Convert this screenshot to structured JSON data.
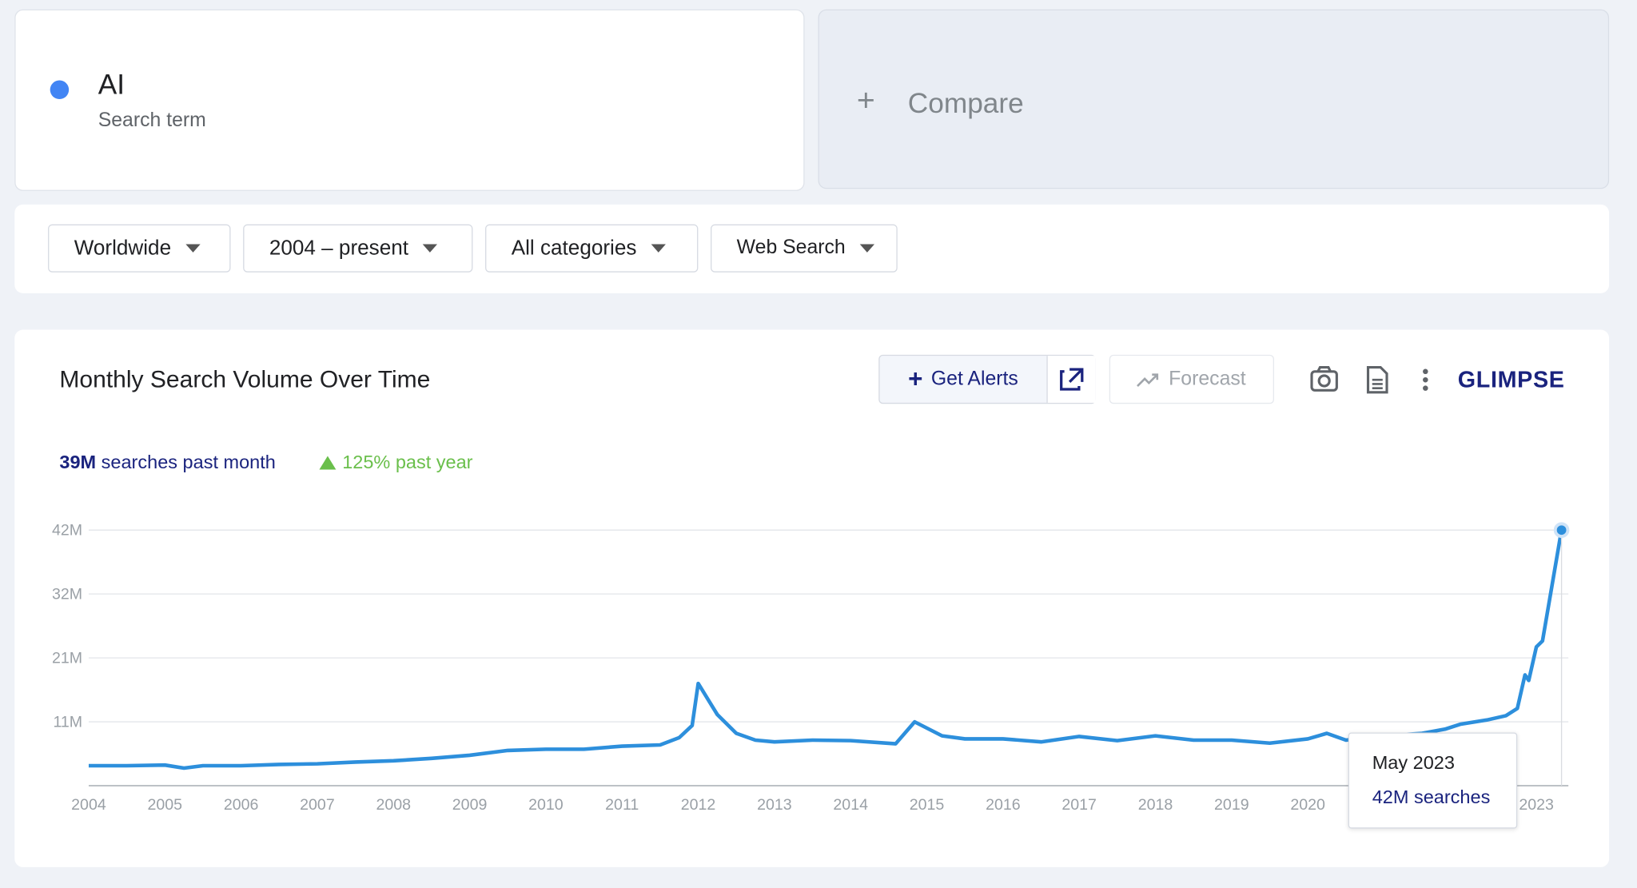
{
  "search_term": {
    "name": "AI",
    "label": "Search term"
  },
  "compare": "Compare",
  "filters": [
    "Worldwide",
    "2004 – present",
    "All categories",
    "Web Search"
  ],
  "panel": {
    "title": "Monthly Search Volume Over Time",
    "alerts": "Get Alerts",
    "forecast": "Forecast",
    "brand": "GLIMPSE",
    "stats": {
      "volume": "39M",
      "volume_text": "searches past month",
      "growth": "125% past year"
    }
  },
  "tooltip": {
    "date": "May 2023",
    "value": "42M searches"
  },
  "chart_data": {
    "type": "line",
    "color": "#2d8fdc",
    "x": [
      2004,
      2004.5,
      2005,
      2005.25,
      2005.5,
      2006,
      2006.5,
      2007,
      2007.5,
      2008,
      2008.5,
      2009,
      2009.5,
      2010,
      2010.5,
      2011,
      2011.5,
      2011.75,
      2011.92,
      2012,
      2012.25,
      2012.5,
      2012.75,
      2013,
      2013.5,
      2014,
      2014.59,
      2014.84,
      2015.2,
      2015.5,
      2016,
      2016.5,
      2017,
      2017.5,
      2018,
      2018.5,
      2019,
      2019.5,
      2020,
      2020.25,
      2020.5,
      2021,
      2021.5,
      2021.8,
      2022,
      2022.35,
      2022.6,
      2022.75,
      2022.85,
      2022.9,
      2023,
      2023.08,
      2023.33
    ],
    "values": [
      3300000,
      3300000,
      3400000,
      2900000,
      3300000,
      3300000,
      3500000,
      3600000,
      3900000,
      4100000,
      4500000,
      5000000,
      5800000,
      6000000,
      6000000,
      6500000,
      6700000,
      7900000,
      9900000,
      16800000,
      11700000,
      8600000,
      7500000,
      7200000,
      7500000,
      7400000,
      6900000,
      10500000,
      8200000,
      7700000,
      7700000,
      7200000,
      8100000,
      7400000,
      8200000,
      7500000,
      7500000,
      7000000,
      7700000,
      8600000,
      7500000,
      8200000,
      8600000,
      9300000,
      10100000,
      10800000,
      11500000,
      12700000,
      18200000,
      17300000,
      22800000,
      23800000,
      42000000
    ],
    "xlim": [
      2004,
      2023.42
    ],
    "xticks": [
      2004,
      2005,
      2006,
      2007,
      2008,
      2009,
      2010,
      2011,
      2012,
      2013,
      2014,
      2015,
      2016,
      2017,
      2018,
      2019,
      2020,
      2021,
      2022,
      2023
    ],
    "ylim": [
      0,
      42000000
    ],
    "yticks": [
      {
        "value": 10500000,
        "label": "11M"
      },
      {
        "value": 21000000,
        "label": "21M"
      },
      {
        "value": 31500000,
        "label": "32M"
      },
      {
        "value": 42000000,
        "label": "42M"
      }
    ],
    "grid": true
  }
}
